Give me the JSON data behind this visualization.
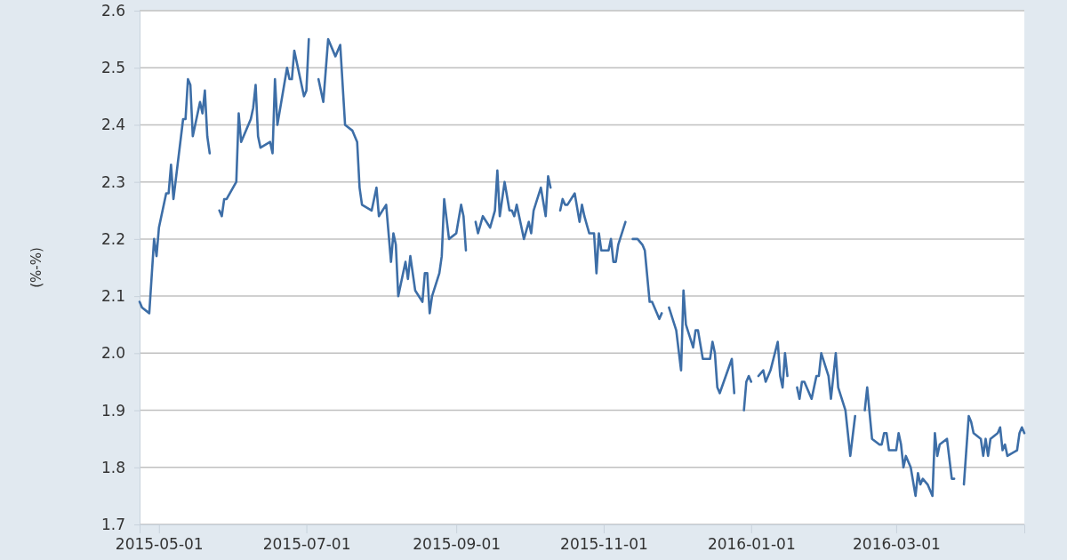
{
  "chart_data": {
    "type": "line",
    "ylabel": "(%-%)",
    "grid": "y",
    "xlim": [
      "2015-04-23",
      "2016-04-23"
    ],
    "ylim": [
      1.7,
      2.6
    ],
    "xticks": [
      "2015-05-01",
      "2015-07-01",
      "2015-09-01",
      "2015-11-01",
      "2016-01-01",
      "2016-03-01"
    ],
    "yticks": [
      1.7,
      1.8,
      1.9,
      {
        "value": 2,
        "label": "2.0"
      },
      2.1,
      2.2,
      2.3,
      2.4,
      2.5,
      2.6
    ],
    "line_style": "solid",
    "x": [
      "2015-04-23",
      "2015-04-24",
      "2015-04-27",
      "2015-04-29",
      "2015-04-30",
      "2015-05-01",
      "2015-05-04",
      "2015-05-05",
      "2015-05-06",
      "2015-05-07",
      "2015-05-11",
      "2015-05-12",
      "2015-05-13",
      "2015-05-14",
      "2015-05-15",
      "2015-05-18",
      "2015-05-19",
      "2015-05-20",
      "2015-05-21",
      "2015-05-22",
      "2015-05-25",
      "2015-05-26",
      "2015-05-27",
      "2015-05-28",
      "2015-05-29",
      "2015-06-02",
      "2015-06-03",
      "2015-06-04",
      "2015-06-08",
      "2015-06-09",
      "2015-06-10",
      "2015-06-11",
      "2015-06-12",
      "2015-06-16",
      "2015-06-17",
      "2015-06-18",
      "2015-06-19",
      "2015-06-23",
      "2015-06-24",
      "2015-06-25",
      "2015-06-26",
      "2015-06-30",
      "2015-07-01",
      "2015-07-02",
      "2015-07-03",
      "2015-07-06",
      "2015-07-08",
      "2015-07-10",
      "2015-07-13",
      "2015-07-15",
      "2015-07-16",
      "2015-07-17",
      "2015-07-20",
      "2015-07-22",
      "2015-07-23",
      "2015-07-24",
      "2015-07-28",
      "2015-07-30",
      "2015-07-31",
      "2015-08-03",
      "2015-08-05",
      "2015-08-06",
      "2015-08-07",
      "2015-08-08",
      "2015-08-11",
      "2015-08-12",
      "2015-08-13",
      "2015-08-15",
      "2015-08-18",
      "2015-08-19",
      "2015-08-20",
      "2015-08-21",
      "2015-08-22",
      "2015-08-25",
      "2015-08-26",
      "2015-08-27",
      "2015-08-29",
      "2015-09-01",
      "2015-09-03",
      "2015-09-04",
      "2015-09-05",
      "2015-09-07",
      "2015-09-09",
      "2015-09-10",
      "2015-09-12",
      "2015-09-15",
      "2015-09-17",
      "2015-09-18",
      "2015-09-19",
      "2015-09-21",
      "2015-09-23",
      "2015-09-24",
      "2015-09-25",
      "2015-09-26",
      "2015-09-29",
      "2015-10-01",
      "2015-10-02",
      "2015-10-03",
      "2015-10-06",
      "2015-10-08",
      "2015-10-09",
      "2015-10-10",
      "2015-10-12",
      "2015-10-14",
      "2015-10-15",
      "2015-10-16",
      "2015-10-17",
      "2015-10-20",
      "2015-10-22",
      "2015-10-23",
      "2015-10-24",
      "2015-10-26",
      "2015-10-28",
      "2015-10-29",
      "2015-10-30",
      "2015-10-31",
      "2015-11-03",
      "2015-11-04",
      "2015-11-05",
      "2015-11-06",
      "2015-11-07",
      "2015-11-10",
      "2015-11-12",
      "2015-11-13",
      "2015-11-15",
      "2015-11-17",
      "2015-11-18",
      "2015-11-20",
      "2015-11-21",
      "2015-11-24",
      "2015-11-25",
      "2015-11-26",
      "2015-11-28",
      "2015-12-01",
      "2015-12-03",
      "2015-12-04",
      "2015-12-05",
      "2015-12-08",
      "2015-12-09",
      "2015-12-10",
      "2015-12-12",
      "2015-12-15",
      "2015-12-16",
      "2015-12-17",
      "2015-12-18",
      "2015-12-19",
      "2015-12-24",
      "2015-12-25",
      "2015-12-28",
      "2015-12-29",
      "2015-12-30",
      "2015-12-31",
      "2016-01-01",
      "2016-01-02",
      "2016-01-04",
      "2016-01-06",
      "2016-01-07",
      "2016-01-09",
      "2016-01-12",
      "2016-01-13",
      "2016-01-14",
      "2016-01-15",
      "2016-01-16",
      "2016-01-19",
      "2016-01-20",
      "2016-01-21",
      "2016-01-22",
      "2016-01-23",
      "2016-01-26",
      "2016-01-28",
      "2016-01-29",
      "2016-01-30",
      "2016-02-02",
      "2016-02-03",
      "2016-02-05",
      "2016-02-06",
      "2016-02-09",
      "2016-02-11",
      "2016-02-13",
      "2016-02-15",
      "2016-02-17",
      "2016-02-18",
      "2016-02-20",
      "2016-02-23",
      "2016-02-24",
      "2016-02-25",
      "2016-02-26",
      "2016-02-27",
      "2016-03-01",
      "2016-03-02",
      "2016-03-03",
      "2016-03-04",
      "2016-03-05",
      "2016-03-07",
      "2016-03-09",
      "2016-03-10",
      "2016-03-11",
      "2016-03-12",
      "2016-03-14",
      "2016-03-16",
      "2016-03-17",
      "2016-03-18",
      "2016-03-19",
      "2016-03-22",
      "2016-03-24",
      "2016-03-25",
      "2016-03-27",
      "2016-03-29",
      "2016-03-31",
      "2016-04-01",
      "2016-04-02",
      "2016-04-05",
      "2016-04-06",
      "2016-04-07",
      "2016-04-08",
      "2016-04-09",
      "2016-04-12",
      "2016-04-13",
      "2016-04-14",
      "2016-04-15",
      "2016-04-16",
      "2016-04-20",
      "2016-04-21",
      "2016-04-22",
      "2016-04-23"
    ],
    "series": [
      {
        "color": "#3d6ea7",
        "values": [
          2.09,
          2.08,
          2.07,
          2.2,
          2.17,
          2.22,
          2.28,
          2.28,
          2.33,
          2.27,
          2.41,
          2.41,
          2.48,
          2.47,
          2.38,
          2.44,
          2.42,
          2.46,
          2.38,
          2.35,
          null,
          2.25,
          2.24,
          2.27,
          2.27,
          2.3,
          2.42,
          2.37,
          2.41,
          2.43,
          2.47,
          2.38,
          2.36,
          2.37,
          2.35,
          2.48,
          2.4,
          2.5,
          2.48,
          2.48,
          2.53,
          2.45,
          2.46,
          2.55,
          null,
          2.48,
          2.44,
          2.55,
          2.52,
          2.54,
          2.47,
          2.4,
          2.39,
          2.37,
          2.29,
          2.26,
          2.25,
          2.29,
          2.24,
          2.26,
          2.16,
          2.21,
          2.19,
          2.1,
          2.16,
          2.13,
          2.17,
          2.11,
          2.09,
          2.14,
          2.14,
          2.07,
          2.1,
          2.14,
          2.17,
          2.27,
          2.2,
          2.21,
          2.26,
          2.24,
          2.18,
          null,
          2.23,
          2.21,
          2.24,
          2.22,
          2.25,
          2.32,
          2.24,
          2.3,
          2.25,
          2.25,
          2.24,
          2.26,
          2.2,
          2.23,
          2.21,
          2.25,
          2.29,
          2.24,
          2.31,
          2.29,
          null,
          2.25,
          2.27,
          2.26,
          2.26,
          2.28,
          2.23,
          2.26,
          2.24,
          2.21,
          2.21,
          2.14,
          2.21,
          2.18,
          2.18,
          2.2,
          2.16,
          2.16,
          2.19,
          2.23,
          null,
          2.2,
          2.2,
          2.19,
          2.18,
          2.09,
          2.09,
          2.06,
          2.07,
          null,
          2.08,
          2.04,
          1.97,
          2.11,
          2.05,
          2.01,
          2.04,
          2.04,
          1.99,
          1.99,
          2.02,
          2,
          1.94,
          1.93,
          1.99,
          1.93,
          null,
          1.9,
          1.95,
          1.96,
          1.95,
          null,
          1.96,
          1.97,
          1.95,
          1.97,
          2.02,
          1.96,
          1.94,
          2,
          1.96,
          null,
          1.94,
          1.92,
          1.95,
          1.95,
          1.92,
          1.96,
          1.96,
          2,
          1.96,
          1.92,
          2,
          1.94,
          1.9,
          1.82,
          1.89,
          null,
          1.9,
          1.94,
          1.85,
          1.84,
          1.84,
          1.86,
          1.86,
          1.83,
          1.83,
          1.86,
          1.84,
          1.8,
          1.82,
          1.8,
          1.75,
          1.79,
          1.77,
          1.78,
          1.77,
          1.75,
          1.86,
          1.82,
          1.84,
          1.85,
          1.78,
          1.78,
          null,
          1.77,
          1.89,
          1.88,
          1.86,
          1.85,
          1.82,
          1.85,
          1.82,
          1.85,
          1.86,
          1.87,
          1.83,
          1.84,
          1.82,
          1.83,
          1.86,
          1.87,
          1.86
        ]
      }
    ]
  }
}
